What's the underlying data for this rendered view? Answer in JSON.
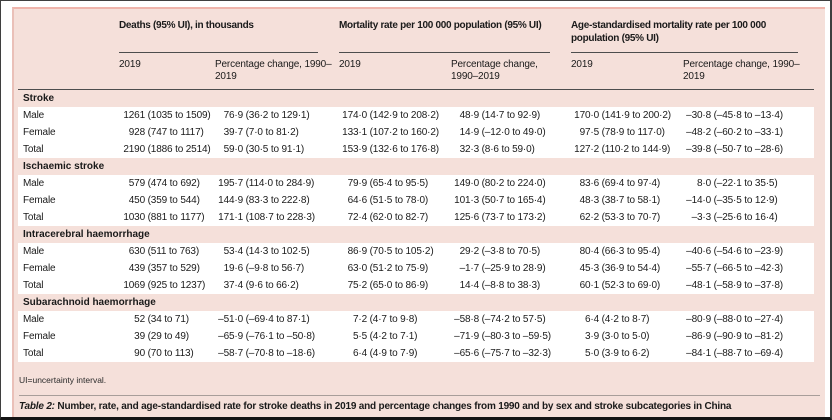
{
  "colors": {
    "panel_pink": "#f5e0da",
    "rose_border": "#efb4ab",
    "row_white": "#ffffff",
    "rule_dark": "#4d4d4d",
    "frame_dark": "#3f3f3f"
  },
  "table": {
    "column_groups": [
      {
        "title": "Deaths (95% UI), in thousands"
      },
      {
        "title": "Mortality rate per 100 000 population (95% UI)"
      },
      {
        "title": "Age-standardised mortality rate per 100 000 population (95% UI)"
      }
    ],
    "subheader_year": "2019",
    "subheader_change": "Percentage change, 1990–2019",
    "sections": [
      {
        "label": "Stroke",
        "rows": [
          {
            "label": "Male",
            "cells": [
              "1261 (1035 to 1509)",
              "76·9 (36·2 to 129·1)",
              "174·0 (142·9 to 208·2)",
              "48·9 (14·7 to 92·9)",
              "170·0 (141·9 to 200·2)",
              "–30·8 (–45·8 to –13·4)"
            ]
          },
          {
            "label": "Female",
            "cells": [
              "928 (747 to 1117)",
              "39·7 (7·0 to 81·2)",
              "133·1 (107·2 to 160·2)",
              "14·9 (–12·0 to 49·0)",
              "97·5 (78·9 to 117·0)",
              "–48·2 (–60·2 to –33·1)"
            ]
          },
          {
            "label": "Total",
            "cells": [
              "2190 (1886 to 2514)",
              "59·0 (30·5 to 91·1)",
              "153·9 (132·6 to 176·8)",
              "32·3 (8·6 to 59·0)",
              "127·2 (110·2 to 144·9)",
              "–39·8 (–50·7 to –28·6)"
            ]
          }
        ]
      },
      {
        "label": "Ischaemic stroke",
        "rows": [
          {
            "label": "Male",
            "cells": [
              "579 (474 to 692)",
              "195·7 (114·0 to 284·9)",
              "79·9 (65·4 to 95·5)",
              "149·0 (80·2 to 224·0)",
              "83·6 (69·4 to 97·4)",
              "8·0 (–22·1 to 35·5)"
            ]
          },
          {
            "label": "Female",
            "cells": [
              "450 (359 to 544)",
              "144·9 (83·3 to 222·8)",
              "64·6 (51·5 to 78·0)",
              "101·3 (50·7 to 165·4)",
              "48·3 (38·7 to 58·1)",
              "–14·0 (–35·5 to 12·9)"
            ]
          },
          {
            "label": "Total",
            "cells": [
              "1030 (881 to 1177)",
              "171·1 (108·7 to 228·3)",
              "72·4 (62·0 to 82·7)",
              "125·6 (73·7 to 173·2)",
              "62·2 (53·3 to 70·7)",
              "–3·3 (–25·6 to 16·4)"
            ]
          }
        ]
      },
      {
        "label": "Intracerebral haemorrhage",
        "rows": [
          {
            "label": "Male",
            "cells": [
              "630 (511 to 763)",
              "53·4 (14·3 to 102·5)",
              "86·9 (70·5 to 105·2)",
              "29·2 (–3·8 to 70·5)",
              "80·4 (66·3 to 95·4)",
              "–40·6 (–54·6 to –23·9)"
            ]
          },
          {
            "label": "Female",
            "cells": [
              "439 (357 to 529)",
              "19·6 (–9·8 to 56·7)",
              "63·0 (51·2 to 75·9)",
              "–1·7 (–25·9 to 28·9)",
              "45·3 (36·9 to 54·4)",
              "–55·7 (–66·5 to –42·3)"
            ]
          },
          {
            "label": "Total",
            "cells": [
              "1069 (925 to 1237)",
              "37·4 (9·6 to 66·2)",
              "75·2 (65·0 to 86·9)",
              "14·4 (–8·8 to 38·3)",
              "60·1 (52·3 to 69·0)",
              "–48·1 (–58·9 to –37·8)"
            ]
          }
        ]
      },
      {
        "label": "Subarachnoid haemorrhage",
        "rows": [
          {
            "label": "Male",
            "cells": [
              "52 (34 to 71)",
              "–51·0 (–69·4 to 87·1)",
              "7·2 (4·7 to 9·8)",
              "–58·8 (–74·2 to 57·5)",
              "6·4 (4·2 to 8·7)",
              "–80·9 (–88·0 to –27·4)"
            ]
          },
          {
            "label": "Female",
            "cells": [
              "39 (29 to 49)",
              "–65·9 (–76·1 to –50·8)",
              "5·5 (4·2 to 7·1)",
              "–71·9 (–80·3 to –59·5)",
              "3·9 (3·0 to 5·0)",
              "–86·9 (–90·9 to –81·2)"
            ]
          },
          {
            "label": "Total",
            "cells": [
              "90 (70 to 113)",
              "–58·7 (–70·8 to –18·6)",
              "6·4 (4·9 to 7·9)",
              "–65·6 (–75·7 to –32·3)",
              "5·0 (3·9 to 6·2)",
              "–84·1 (–88·7 to –69·4)"
            ]
          }
        ]
      }
    ],
    "footnote": "UI=uncertainty interval.",
    "caption_label": "Table 2:",
    "caption_text": "Number, rate, and age-standardised rate for stroke deaths in 2019 and percentage changes from 1990 and by sex and stroke subcategories in China"
  }
}
